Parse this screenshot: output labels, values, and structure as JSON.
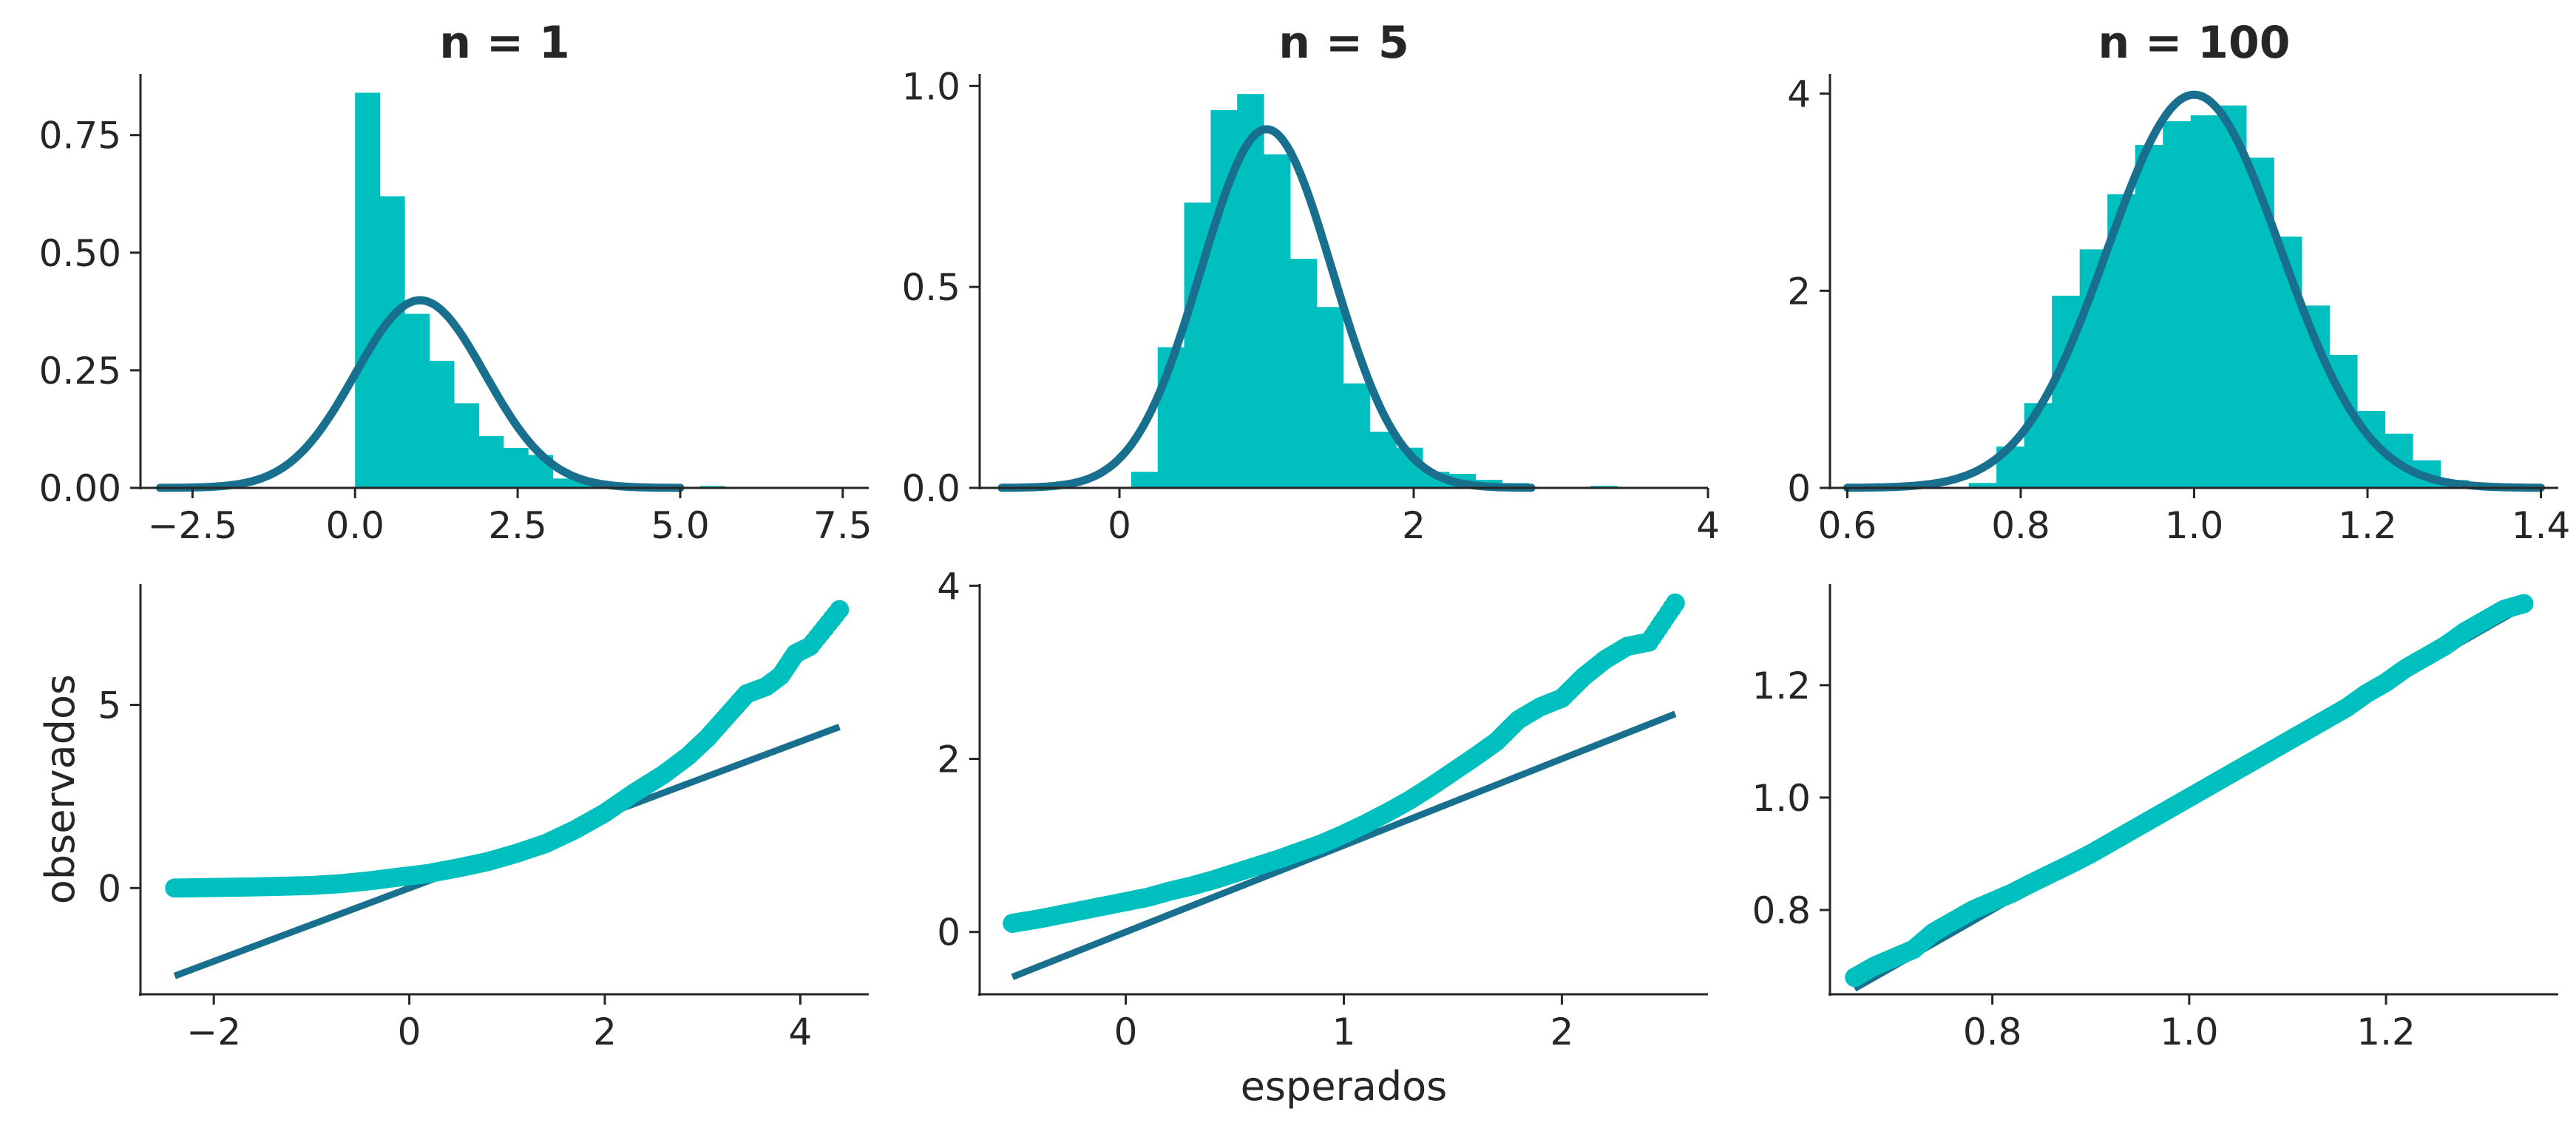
{
  "colors": {
    "bars": "#00BFBF",
    "curve": "#18708E",
    "points": "#00BFBF",
    "line": "#18708E",
    "axis": "#262626"
  },
  "chart_data": [
    {
      "type": "bar",
      "subtype": "histogram-with-normal-curve",
      "title": "n = 1",
      "xlim": [
        -3.3,
        7.9
      ],
      "ylim": [
        0,
        0.88
      ],
      "xticks": [
        -2.5,
        0.0,
        2.5,
        5.0,
        7.5
      ],
      "xtick_labels": [
        "−2.5",
        "0.0",
        "2.5",
        "5.0",
        "7.5"
      ],
      "yticks": [
        0.0,
        0.25,
        0.5,
        0.75
      ],
      "ytick_labels": [
        "0.00",
        "0.25",
        "0.50",
        "0.75"
      ],
      "bins": [
        {
          "x0": 0.0,
          "x1": 0.38,
          "y": 0.84
        },
        {
          "x0": 0.38,
          "x1": 0.76,
          "y": 0.62
        },
        {
          "x0": 0.76,
          "x1": 1.14,
          "y": 0.37
        },
        {
          "x0": 1.14,
          "x1": 1.52,
          "y": 0.27
        },
        {
          "x0": 1.52,
          "x1": 1.9,
          "y": 0.18
        },
        {
          "x0": 1.9,
          "x1": 2.28,
          "y": 0.11
        },
        {
          "x0": 2.28,
          "x1": 2.66,
          "y": 0.085
        },
        {
          "x0": 2.66,
          "x1": 3.04,
          "y": 0.07
        },
        {
          "x0": 3.04,
          "x1": 3.42,
          "y": 0.02
        },
        {
          "x0": 3.42,
          "x1": 3.8,
          "y": 0.015
        },
        {
          "x0": 3.8,
          "x1": 4.18,
          "y": 0.008
        },
        {
          "x0": 4.18,
          "x1": 4.56,
          "y": 0.005
        },
        {
          "x0": 5.3,
          "x1": 5.68,
          "y": 0.004
        }
      ],
      "curve": {
        "mean": 1.0,
        "sd": 1.0,
        "x_range": [
          -3.0,
          5.0
        ]
      }
    },
    {
      "type": "bar",
      "subtype": "histogram-with-normal-curve",
      "title": "n = 5",
      "xlim": [
        -0.95,
        4.0
      ],
      "ylim": [
        0,
        1.03
      ],
      "xticks": [
        0,
        2,
        4
      ],
      "xtick_labels": [
        "0",
        "2",
        "4"
      ],
      "yticks": [
        0.0,
        0.5,
        1.0
      ],
      "ytick_labels": [
        "0.0",
        "0.5",
        "1.0"
      ],
      "bins": [
        {
          "x0": 0.08,
          "x1": 0.26,
          "y": 0.04
        },
        {
          "x0": 0.26,
          "x1": 0.44,
          "y": 0.35
        },
        {
          "x0": 0.44,
          "x1": 0.62,
          "y": 0.71
        },
        {
          "x0": 0.62,
          "x1": 0.8,
          "y": 0.94
        },
        {
          "x0": 0.8,
          "x1": 0.98,
          "y": 0.98
        },
        {
          "x0": 0.98,
          "x1": 1.16,
          "y": 0.83
        },
        {
          "x0": 1.16,
          "x1": 1.34,
          "y": 0.57
        },
        {
          "x0": 1.34,
          "x1": 1.52,
          "y": 0.45
        },
        {
          "x0": 1.52,
          "x1": 1.7,
          "y": 0.26
        },
        {
          "x0": 1.7,
          "x1": 1.88,
          "y": 0.14
        },
        {
          "x0": 1.88,
          "x1": 2.06,
          "y": 0.1
        },
        {
          "x0": 2.06,
          "x1": 2.24,
          "y": 0.04
        },
        {
          "x0": 2.24,
          "x1": 2.42,
          "y": 0.035
        },
        {
          "x0": 2.42,
          "x1": 2.6,
          "y": 0.02
        },
        {
          "x0": 2.6,
          "x1": 2.78,
          "y": 0.012
        },
        {
          "x0": 3.2,
          "x1": 3.38,
          "y": 0.005
        }
      ],
      "curve": {
        "mean": 1.0,
        "sd": 0.447,
        "x_range": [
          -0.8,
          2.8
        ]
      }
    },
    {
      "type": "bar",
      "subtype": "histogram-with-normal-curve",
      "title": "n = 100",
      "xlim": [
        0.58,
        1.42
      ],
      "ylim": [
        0,
        4.2
      ],
      "xticks": [
        0.6,
        0.8,
        1.0,
        1.2,
        1.4
      ],
      "xtick_labels": [
        "0.6",
        "0.8",
        "1.0",
        "1.2",
        "1.4"
      ],
      "yticks": [
        0,
        2,
        4
      ],
      "ytick_labels": [
        "0",
        "2",
        "4"
      ],
      "bins": [
        {
          "x0": 0.74,
          "x1": 0.772,
          "y": 0.05
        },
        {
          "x0": 0.772,
          "x1": 0.804,
          "y": 0.42
        },
        {
          "x0": 0.804,
          "x1": 0.836,
          "y": 0.86
        },
        {
          "x0": 0.836,
          "x1": 0.868,
          "y": 1.95
        },
        {
          "x0": 0.868,
          "x1": 0.9,
          "y": 2.42
        },
        {
          "x0": 0.9,
          "x1": 0.932,
          "y": 2.98
        },
        {
          "x0": 0.932,
          "x1": 0.964,
          "y": 3.48
        },
        {
          "x0": 0.964,
          "x1": 0.996,
          "y": 3.72
        },
        {
          "x0": 0.996,
          "x1": 1.028,
          "y": 3.78
        },
        {
          "x0": 1.028,
          "x1": 1.06,
          "y": 3.88
        },
        {
          "x0": 1.06,
          "x1": 1.092,
          "y": 3.35
        },
        {
          "x0": 1.092,
          "x1": 1.124,
          "y": 2.55
        },
        {
          "x0": 1.124,
          "x1": 1.156,
          "y": 1.85
        },
        {
          "x0": 1.156,
          "x1": 1.188,
          "y": 1.35
        },
        {
          "x0": 1.188,
          "x1": 1.22,
          "y": 0.78
        },
        {
          "x0": 1.22,
          "x1": 1.252,
          "y": 0.55
        },
        {
          "x0": 1.252,
          "x1": 1.284,
          "y": 0.28
        },
        {
          "x0": 1.284,
          "x1": 1.316,
          "y": 0.08
        }
      ],
      "curve": {
        "mean": 1.0,
        "sd": 0.1,
        "x_range": [
          0.6,
          1.4
        ]
      }
    },
    {
      "type": "scatter",
      "subtype": "qq-plot",
      "xlim": [
        -2.75,
        4.7
      ],
      "ylim": [
        -2.9,
        8.3
      ],
      "xticks": [
        -2,
        0,
        2,
        4
      ],
      "xtick_labels": [
        "−2",
        "0",
        "2",
        "4"
      ],
      "yticks": [
        0,
        5
      ],
      "ytick_labels": [
        "0",
        "5"
      ],
      "ylabel": "observados",
      "points": [
        [
          -2.4,
          0.0
        ],
        [
          -2.1,
          0.01
        ],
        [
          -1.9,
          0.02
        ],
        [
          -1.6,
          0.03
        ],
        [
          -1.3,
          0.05
        ],
        [
          -1.0,
          0.07
        ],
        [
          -0.7,
          0.12
        ],
        [
          -0.4,
          0.2
        ],
        [
          -0.1,
          0.3
        ],
        [
          0.2,
          0.4
        ],
        [
          0.5,
          0.55
        ],
        [
          0.8,
          0.72
        ],
        [
          1.1,
          0.95
        ],
        [
          1.4,
          1.22
        ],
        [
          1.7,
          1.6
        ],
        [
          2.0,
          2.05
        ],
        [
          2.3,
          2.6
        ],
        [
          2.6,
          3.1
        ],
        [
          2.85,
          3.6
        ],
        [
          3.05,
          4.1
        ],
        [
          3.25,
          4.7
        ],
        [
          3.45,
          5.3
        ],
        [
          3.65,
          5.5
        ],
        [
          3.8,
          5.8
        ],
        [
          3.95,
          6.4
        ],
        [
          4.1,
          6.6
        ],
        [
          4.4,
          7.6
        ]
      ],
      "line": [
        [
          -2.4,
          -2.4
        ],
        [
          4.4,
          4.4
        ]
      ]
    },
    {
      "type": "scatter",
      "subtype": "qq-plot",
      "xlim": [
        -0.67,
        2.67
      ],
      "ylim": [
        -0.72,
        4.02
      ],
      "xticks": [
        0,
        1,
        2
      ],
      "xtick_labels": [
        "0",
        "1",
        "2"
      ],
      "yticks": [
        0,
        2,
        4
      ],
      "ytick_labels": [
        "0",
        "2",
        "4"
      ],
      "xlabel": "esperados",
      "points": [
        [
          -0.52,
          0.1
        ],
        [
          -0.4,
          0.15
        ],
        [
          -0.3,
          0.2
        ],
        [
          -0.2,
          0.25
        ],
        [
          -0.1,
          0.3
        ],
        [
          0.0,
          0.35
        ],
        [
          0.1,
          0.4
        ],
        [
          0.2,
          0.47
        ],
        [
          0.3,
          0.53
        ],
        [
          0.4,
          0.6
        ],
        [
          0.5,
          0.68
        ],
        [
          0.6,
          0.76
        ],
        [
          0.7,
          0.84
        ],
        [
          0.8,
          0.93
        ],
        [
          0.9,
          1.02
        ],
        [
          1.0,
          1.13
        ],
        [
          1.1,
          1.25
        ],
        [
          1.2,
          1.38
        ],
        [
          1.3,
          1.52
        ],
        [
          1.4,
          1.68
        ],
        [
          1.5,
          1.85
        ],
        [
          1.6,
          2.02
        ],
        [
          1.7,
          2.2
        ],
        [
          1.8,
          2.45
        ],
        [
          1.9,
          2.6
        ],
        [
          2.0,
          2.7
        ],
        [
          2.1,
          2.95
        ],
        [
          2.2,
          3.15
        ],
        [
          2.3,
          3.3
        ],
        [
          2.4,
          3.35
        ],
        [
          2.52,
          3.8
        ]
      ],
      "line": [
        [
          -0.52,
          -0.52
        ],
        [
          2.52,
          2.52
        ]
      ]
    },
    {
      "type": "scatter",
      "subtype": "qq-plot",
      "xlim": [
        0.635,
        1.375
      ],
      "ylim": [
        0.65,
        1.38
      ],
      "xticks": [
        0.8,
        1.0,
        1.2
      ],
      "xtick_labels": [
        "0.8",
        "1.0",
        "1.2"
      ],
      "yticks": [
        0.8,
        1.0,
        1.2
      ],
      "ytick_labels": [
        "0.8",
        "1.0",
        "1.2"
      ],
      "points": [
        [
          0.66,
          0.68
        ],
        [
          0.68,
          0.7
        ],
        [
          0.7,
          0.715
        ],
        [
          0.72,
          0.73
        ],
        [
          0.74,
          0.76
        ],
        [
          0.76,
          0.78
        ],
        [
          0.78,
          0.8
        ],
        [
          0.8,
          0.815
        ],
        [
          0.82,
          0.83
        ],
        [
          0.84,
          0.848
        ],
        [
          0.86,
          0.865
        ],
        [
          0.88,
          0.882
        ],
        [
          0.9,
          0.9
        ],
        [
          0.92,
          0.92
        ],
        [
          0.94,
          0.94
        ],
        [
          0.96,
          0.96
        ],
        [
          0.98,
          0.98
        ],
        [
          1.0,
          1.0
        ],
        [
          1.02,
          1.02
        ],
        [
          1.04,
          1.04
        ],
        [
          1.06,
          1.06
        ],
        [
          1.08,
          1.08
        ],
        [
          1.1,
          1.1
        ],
        [
          1.12,
          1.12
        ],
        [
          1.14,
          1.14
        ],
        [
          1.16,
          1.16
        ],
        [
          1.18,
          1.185
        ],
        [
          1.2,
          1.205
        ],
        [
          1.22,
          1.23
        ],
        [
          1.24,
          1.25
        ],
        [
          1.26,
          1.27
        ],
        [
          1.28,
          1.295
        ],
        [
          1.3,
          1.315
        ],
        [
          1.32,
          1.335
        ],
        [
          1.34,
          1.345
        ]
      ],
      "line": [
        [
          0.66,
          0.66
        ],
        [
          1.34,
          1.34
        ]
      ]
    }
  ]
}
